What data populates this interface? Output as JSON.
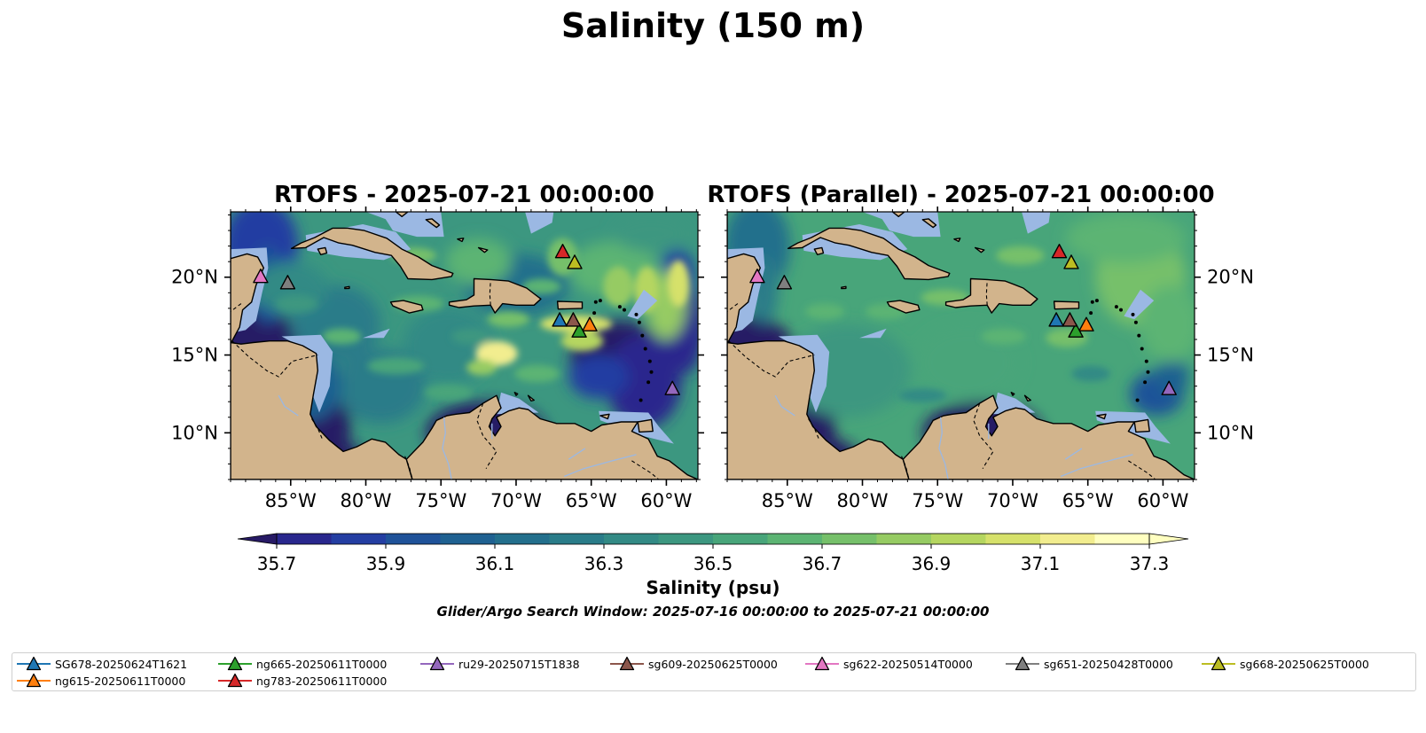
{
  "title": "Salinity (150 m)",
  "panels": [
    {
      "title": "RTOFS - 2025-07-21 00:00:00",
      "variant": "rtofs"
    },
    {
      "title": "RTOFS (Parallel) - 2025-07-21 00:00:00",
      "variant": "parallel"
    }
  ],
  "colors": {
    "land": "#d2b48c",
    "shelf": "#9bb8e3",
    "cmap": [
      "#271a65",
      "#29278d",
      "#243ea2",
      "#1f5299",
      "#1f6191",
      "#236f8c",
      "#2a7c89",
      "#338a85",
      "#3c9780",
      "#48a57a",
      "#5cb473",
      "#76c06a",
      "#96cb63",
      "#b5d660",
      "#d6e16b",
      "#f2ed8f",
      "#ffffc0"
    ]
  },
  "chart_data": {
    "type": "map",
    "axes": {
      "lon_range": [
        -89,
        -57.9
      ],
      "lat_range": [
        7,
        24.2
      ],
      "x_ticks": [
        -85,
        -80,
        -75,
        -70,
        -65,
        -60
      ],
      "x_tick_labels": [
        "85°W",
        "80°W",
        "75°W",
        "70°W",
        "65°W",
        "60°W"
      ],
      "y_ticks": [
        10,
        15,
        20
      ],
      "y_tick_labels": [
        "10°N",
        "15°N",
        "20°N"
      ]
    },
    "colorbar": {
      "label": "Salinity (psu)",
      "min": 35.6,
      "max": 37.4,
      "levels": [
        35.6,
        35.7,
        35.8,
        35.9,
        36.0,
        36.1,
        36.2,
        36.3,
        36.4,
        36.5,
        36.6,
        36.7,
        36.8,
        36.9,
        37.0,
        37.1,
        37.2,
        37.3,
        37.4
      ],
      "ticks": [
        35.7,
        35.9,
        36.1,
        36.3,
        36.5,
        36.7,
        36.9,
        37.1,
        37.3
      ],
      "tick_labels": [
        "35.7",
        "35.9",
        "36.1",
        "36.3",
        "36.5",
        "36.7",
        "36.9",
        "37.1",
        "37.3"
      ],
      "extend": "both"
    },
    "subtitle": "Glider/Argo Search Window: 2025-07-16 00:00:00 to 2025-07-21 00:00:00",
    "gliders": [
      {
        "name": "SG678-20250624T1621",
        "color": "#1f77b4",
        "lon": -67.1,
        "lat": 17.2
      },
      {
        "name": "ng615-20250611T0000",
        "color": "#ff7f0e",
        "lon": -65.1,
        "lat": 16.9
      },
      {
        "name": "ng665-20250611T0000",
        "color": "#2ca02c",
        "lon": -65.8,
        "lat": 16.5
      },
      {
        "name": "ng783-20250611T0000",
        "color": "#d62728",
        "lon": -66.9,
        "lat": 21.6
      },
      {
        "name": "ru29-20250715T1838",
        "color": "#9467bd",
        "lon": -59.6,
        "lat": 12.8
      },
      {
        "name": "sg609-20250625T0000",
        "color": "#8c564b",
        "lon": -66.2,
        "lat": 17.2
      },
      {
        "name": "sg622-20250514T0000",
        "color": "#e377c2",
        "lon": -87.0,
        "lat": 20.0
      },
      {
        "name": "sg651-20250428T0000",
        "color": "#7f7f7f",
        "lon": -85.2,
        "lat": 19.6
      },
      {
        "name": "sg668-20250625T0000",
        "color": "#bcbd22",
        "lon": -66.1,
        "lat": 20.9
      }
    ]
  }
}
